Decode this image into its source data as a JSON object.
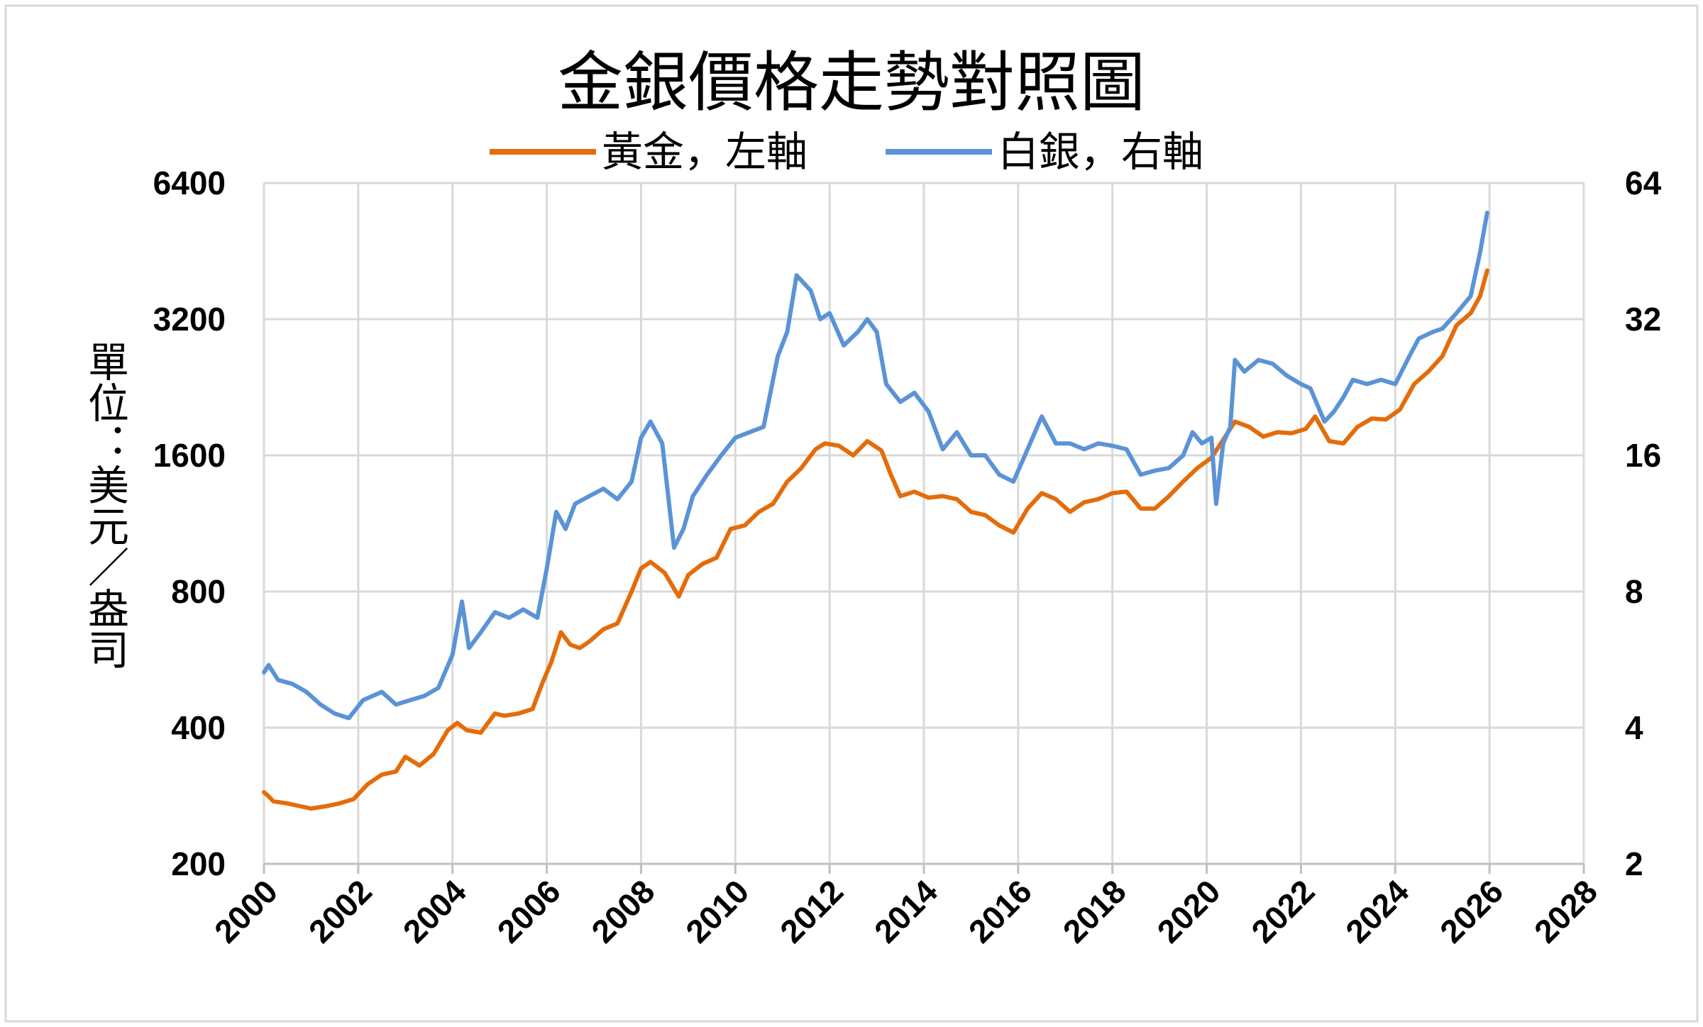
{
  "chart_data": {
    "type": "line",
    "title": "金銀價格走勢對照圖",
    "ylabel": "單位：美元／盎司",
    "y_scale": "log2",
    "ylim_left": [
      200,
      6400
    ],
    "ylim_right": [
      2,
      64
    ],
    "xlim": [
      2000,
      2028
    ],
    "x_ticks": [
      "2000",
      "2002",
      "2004",
      "2006",
      "2008",
      "2010",
      "2012",
      "2014",
      "2016",
      "2018",
      "2020",
      "2022",
      "2024",
      "2026",
      "2028"
    ],
    "y_ticks_left": [
      "200",
      "400",
      "800",
      "1600",
      "3200",
      "6400"
    ],
    "y_ticks_right": [
      "2",
      "4",
      "8",
      "16",
      "32",
      "64"
    ],
    "grid": true,
    "legend_position": "top",
    "series": [
      {
        "name": "黃金，左軸",
        "axis": "left",
        "color": "#E46C0A",
        "x": [
          2000.0,
          2000.1,
          2000.2,
          2000.5,
          2001.0,
          2001.3,
          2001.6,
          2001.9,
          2002.2,
          2002.5,
          2002.8,
          2003.0,
          2003.3,
          2003.6,
          2003.9,
          2004.1,
          2004.3,
          2004.6,
          2004.9,
          2005.1,
          2005.4,
          2005.7,
          2005.9,
          2006.1,
          2006.3,
          2006.5,
          2006.7,
          2006.9,
          2007.2,
          2007.5,
          2007.8,
          2008.0,
          2008.2,
          2008.5,
          2008.8,
          2009.0,
          2009.3,
          2009.6,
          2009.9,
          2010.2,
          2010.5,
          2010.8,
          2011.1,
          2011.4,
          2011.7,
          2011.9,
          2012.2,
          2012.5,
          2012.8,
          2013.1,
          2013.3,
          2013.5,
          2013.8,
          2014.1,
          2014.4,
          2014.7,
          2015.0,
          2015.3,
          2015.6,
          2015.9,
          2016.2,
          2016.5,
          2016.8,
          2017.1,
          2017.4,
          2017.7,
          2018.0,
          2018.3,
          2018.6,
          2018.9,
          2019.2,
          2019.5,
          2019.8,
          2020.1,
          2020.3,
          2020.6,
          2020.9,
          2021.2,
          2021.5,
          2021.8,
          2022.1,
          2022.3,
          2022.6,
          2022.9,
          2023.2,
          2023.5,
          2023.8,
          2024.1,
          2024.4,
          2024.7,
          2025.0,
          2025.3,
          2025.6,
          2025.8,
          2025.95
        ],
        "y": [
          288,
          282,
          275,
          272,
          265,
          268,
          272,
          278,
          300,
          315,
          320,
          345,
          330,
          350,
          395,
          410,
          395,
          390,
          430,
          425,
          430,
          440,
          500,
          560,
          650,
          610,
          600,
          620,
          660,
          680,
          800,
          900,
          930,
          880,
          780,
          870,
          920,
          950,
          1100,
          1120,
          1200,
          1250,
          1400,
          1500,
          1650,
          1700,
          1680,
          1600,
          1720,
          1640,
          1450,
          1300,
          1330,
          1290,
          1300,
          1280,
          1200,
          1180,
          1120,
          1080,
          1220,
          1320,
          1280,
          1200,
          1260,
          1280,
          1320,
          1330,
          1220,
          1220,
          1300,
          1400,
          1500,
          1580,
          1700,
          1900,
          1850,
          1760,
          1800,
          1790,
          1830,
          1950,
          1720,
          1700,
          1850,
          1930,
          1920,
          2020,
          2300,
          2450,
          2650,
          3100,
          3300,
          3600,
          4100
        ]
      },
      {
        "name": "白銀，右軸",
        "axis": "right",
        "color": "#5B93D6",
        "x": [
          2000.0,
          2000.1,
          2000.3,
          2000.6,
          2000.9,
          2001.2,
          2001.5,
          2001.8,
          2002.1,
          2002.5,
          2002.8,
          2003.1,
          2003.4,
          2003.7,
          2004.0,
          2004.2,
          2004.35,
          2004.6,
          2004.9,
          2005.2,
          2005.5,
          2005.8,
          2006.0,
          2006.2,
          2006.4,
          2006.6,
          2006.9,
          2007.2,
          2007.5,
          2007.8,
          2008.0,
          2008.2,
          2008.45,
          2008.7,
          2008.9,
          2009.1,
          2009.4,
          2009.7,
          2010.0,
          2010.3,
          2010.6,
          2010.9,
          2011.1,
          2011.3,
          2011.6,
          2011.8,
          2012.0,
          2012.3,
          2012.6,
          2012.8,
          2013.0,
          2013.2,
          2013.5,
          2013.8,
          2014.1,
          2014.4,
          2014.7,
          2015.0,
          2015.3,
          2015.6,
          2015.9,
          2016.2,
          2016.5,
          2016.8,
          2017.1,
          2017.4,
          2017.7,
          2018.0,
          2018.3,
          2018.6,
          2018.9,
          2019.2,
          2019.5,
          2019.7,
          2019.9,
          2020.1,
          2020.2,
          2020.35,
          2020.5,
          2020.6,
          2020.8,
          2021.1,
          2021.4,
          2021.7,
          2022.0,
          2022.2,
          2022.5,
          2022.7,
          2022.9,
          2023.1,
          2023.4,
          2023.7,
          2024.0,
          2024.3,
          2024.5,
          2024.8,
          2025.0,
          2025.3,
          2025.6,
          2025.8,
          2025.95
        ],
        "y": [
          5.3,
          5.5,
          5.1,
          5.0,
          4.8,
          4.5,
          4.3,
          4.2,
          4.6,
          4.8,
          4.5,
          4.6,
          4.7,
          4.9,
          5.8,
          7.6,
          6.0,
          6.5,
          7.2,
          7.0,
          7.3,
          7.0,
          9.0,
          12.0,
          11.0,
          12.5,
          13.0,
          13.5,
          12.8,
          14.0,
          17.5,
          19.0,
          17.0,
          10.0,
          11.0,
          13.0,
          14.5,
          16.0,
          17.5,
          18.0,
          18.5,
          26.5,
          30.0,
          40.0,
          37.0,
          32.0,
          33.0,
          28.0,
          30.0,
          32.0,
          30.0,
          23.0,
          21.0,
          22.0,
          20.0,
          16.5,
          18.0,
          16.0,
          16.0,
          14.5,
          14.0,
          16.5,
          19.5,
          17.0,
          17.0,
          16.5,
          17.0,
          16.8,
          16.5,
          14.5,
          14.8,
          15.0,
          16.0,
          18.0,
          17.0,
          17.5,
          12.5,
          17.0,
          18.5,
          26.0,
          24.5,
          26.0,
          25.5,
          24.0,
          23.0,
          22.5,
          19.0,
          20.0,
          21.5,
          23.5,
          23.0,
          23.5,
          23.0,
          26.5,
          29.0,
          30.0,
          30.5,
          33.0,
          36.0,
          45.0,
          55.0
        ]
      }
    ]
  }
}
